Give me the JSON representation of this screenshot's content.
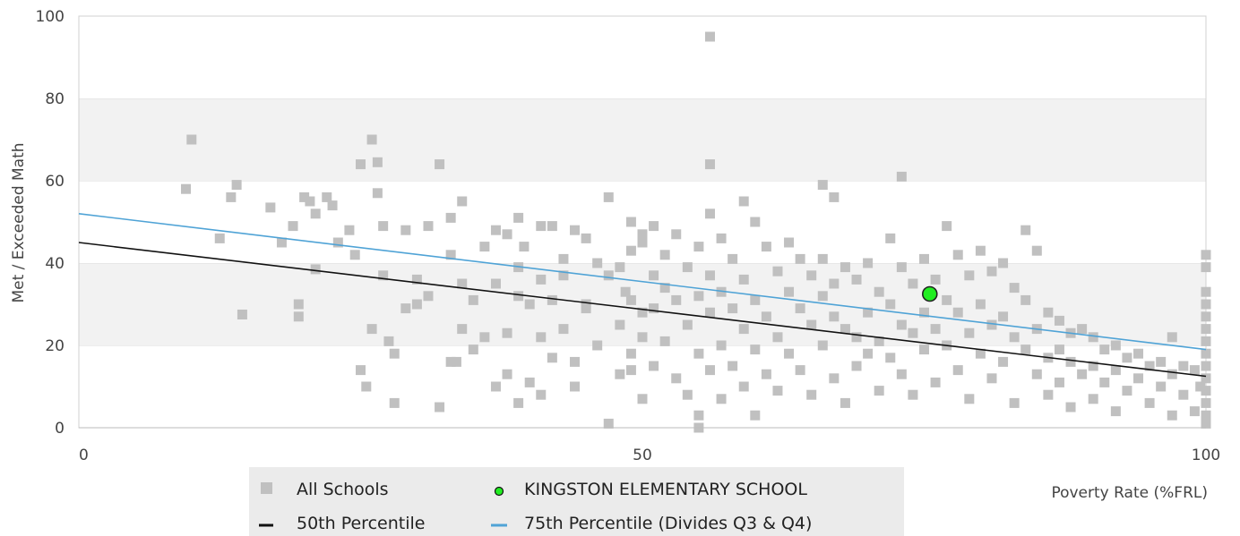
{
  "chart_data": {
    "type": "scatter",
    "title": "",
    "xlabel": "Poverty Rate (%FRL)",
    "ylabel": "Met / Exceeded Math",
    "xlim": [
      0,
      100
    ],
    "ylim": [
      0,
      100
    ],
    "x_ticks": [
      "0",
      "50",
      "100"
    ],
    "y_ticks": [
      "0",
      "20",
      "40",
      "60",
      "80",
      "100"
    ],
    "grid": "horizontal bands",
    "legend_position": "bottom",
    "series": [
      {
        "name": "All Schools",
        "kind": "points",
        "color": "#c0c0c0",
        "marker": "square",
        "points": [
          [
            9.5,
            58
          ],
          [
            10,
            70
          ],
          [
            12.5,
            46
          ],
          [
            13.5,
            56
          ],
          [
            14,
            59
          ],
          [
            14.5,
            27.5
          ],
          [
            17,
            53.5
          ],
          [
            18,
            45
          ],
          [
            19,
            49
          ],
          [
            19.5,
            30
          ],
          [
            19.5,
            27
          ],
          [
            20,
            56
          ],
          [
            20.5,
            55
          ],
          [
            21,
            52
          ],
          [
            21,
            38.5
          ],
          [
            22,
            56
          ],
          [
            22.5,
            54
          ],
          [
            23,
            45
          ],
          [
            24,
            48
          ],
          [
            24.5,
            42
          ],
          [
            25,
            64
          ],
          [
            25,
            14
          ],
          [
            25.5,
            10
          ],
          [
            26,
            70
          ],
          [
            26.5,
            64.5
          ],
          [
            26.5,
            57
          ],
          [
            26,
            24
          ],
          [
            27,
            49
          ],
          [
            27,
            37
          ],
          [
            27.5,
            21
          ],
          [
            28,
            18
          ],
          [
            28,
            6
          ],
          [
            29,
            29
          ],
          [
            29,
            48
          ],
          [
            30,
            30
          ],
          [
            30,
            36
          ],
          [
            31,
            49
          ],
          [
            31,
            32
          ],
          [
            32,
            64
          ],
          [
            32,
            5
          ],
          [
            33,
            42
          ],
          [
            33,
            51
          ],
          [
            33,
            16
          ],
          [
            33.5,
            16
          ],
          [
            34,
            55
          ],
          [
            34,
            24
          ],
          [
            34,
            35
          ],
          [
            35,
            31
          ],
          [
            35,
            19
          ],
          [
            36,
            44
          ],
          [
            36,
            22
          ],
          [
            37,
            48
          ],
          [
            37,
            35
          ],
          [
            37,
            10
          ],
          [
            38,
            47
          ],
          [
            38,
            23
          ],
          [
            38,
            13
          ],
          [
            39,
            51
          ],
          [
            39,
            39
          ],
          [
            39,
            32
          ],
          [
            39,
            6
          ],
          [
            39.5,
            44
          ],
          [
            40,
            30
          ],
          [
            40,
            11
          ],
          [
            41,
            49
          ],
          [
            41,
            36
          ],
          [
            41,
            22
          ],
          [
            41,
            8
          ],
          [
            42,
            49
          ],
          [
            42,
            31
          ],
          [
            42,
            17
          ],
          [
            43,
            41
          ],
          [
            43,
            24
          ],
          [
            43,
            37
          ],
          [
            44,
            48
          ],
          [
            44,
            16
          ],
          [
            44,
            10
          ],
          [
            45,
            46
          ],
          [
            45,
            30
          ],
          [
            45,
            29
          ],
          [
            46,
            40
          ],
          [
            46,
            20
          ],
          [
            47,
            56
          ],
          [
            47,
            37
          ],
          [
            47,
            1
          ],
          [
            48,
            39
          ],
          [
            48,
            25
          ],
          [
            48,
            13
          ],
          [
            48.5,
            33
          ],
          [
            49,
            43
          ],
          [
            49,
            50
          ],
          [
            49,
            31
          ],
          [
            49,
            18
          ],
          [
            49,
            14
          ],
          [
            50,
            47
          ],
          [
            50,
            45
          ],
          [
            50,
            28
          ],
          [
            50,
            22
          ],
          [
            50,
            7
          ],
          [
            51,
            37
          ],
          [
            51,
            49
          ],
          [
            51,
            29
          ],
          [
            51,
            15
          ],
          [
            52,
            42
          ],
          [
            52,
            34
          ],
          [
            52,
            21
          ],
          [
            53,
            47
          ],
          [
            53,
            31
          ],
          [
            53,
            12
          ],
          [
            54,
            39
          ],
          [
            54,
            25
          ],
          [
            54,
            8
          ],
          [
            55,
            44
          ],
          [
            55,
            32
          ],
          [
            55,
            18
          ],
          [
            55,
            3
          ],
          [
            55,
            0
          ],
          [
            56,
            95
          ],
          [
            56,
            64
          ],
          [
            56,
            52
          ],
          [
            56,
            37
          ],
          [
            56,
            28
          ],
          [
            56,
            14
          ],
          [
            57,
            46
          ],
          [
            57,
            33
          ],
          [
            57,
            20
          ],
          [
            57,
            7
          ],
          [
            58,
            41
          ],
          [
            58,
            29
          ],
          [
            58,
            15
          ],
          [
            59,
            55
          ],
          [
            59,
            36
          ],
          [
            59,
            24
          ],
          [
            59,
            10
          ],
          [
            60,
            50
          ],
          [
            60,
            31
          ],
          [
            60,
            19
          ],
          [
            60,
            3
          ],
          [
            61,
            44
          ],
          [
            61,
            27
          ],
          [
            61,
            13
          ],
          [
            62,
            38
          ],
          [
            62,
            22
          ],
          [
            62,
            9
          ],
          [
            63,
            45
          ],
          [
            63,
            33
          ],
          [
            63,
            18
          ],
          [
            64,
            41
          ],
          [
            64,
            29
          ],
          [
            64,
            14
          ],
          [
            65,
            37
          ],
          [
            65,
            25
          ],
          [
            65,
            8
          ],
          [
            66,
            59
          ],
          [
            66,
            41
          ],
          [
            66,
            32
          ],
          [
            66,
            20
          ],
          [
            67,
            56
          ],
          [
            67,
            35
          ],
          [
            67,
            27
          ],
          [
            67,
            12
          ],
          [
            68,
            39
          ],
          [
            68,
            24
          ],
          [
            68,
            6
          ],
          [
            69,
            36
          ],
          [
            69,
            22
          ],
          [
            69,
            15
          ],
          [
            70,
            40
          ],
          [
            70,
            28
          ],
          [
            70,
            18
          ],
          [
            71,
            33
          ],
          [
            71,
            21
          ],
          [
            71,
            9
          ],
          [
            72,
            46
          ],
          [
            72,
            30
          ],
          [
            72,
            17
          ],
          [
            73,
            61
          ],
          [
            73,
            39
          ],
          [
            73,
            25
          ],
          [
            73,
            13
          ],
          [
            74,
            35
          ],
          [
            74,
            23
          ],
          [
            74,
            8
          ],
          [
            75,
            41
          ],
          [
            75,
            28
          ],
          [
            75,
            19
          ],
          [
            76,
            36
          ],
          [
            76,
            24
          ],
          [
            76,
            11
          ],
          [
            77,
            49
          ],
          [
            77,
            31
          ],
          [
            77,
            20
          ],
          [
            78,
            42
          ],
          [
            78,
            28
          ],
          [
            78,
            14
          ],
          [
            79,
            37
          ],
          [
            79,
            23
          ],
          [
            79,
            7
          ],
          [
            80,
            43
          ],
          [
            80,
            30
          ],
          [
            80,
            18
          ],
          [
            81,
            38
          ],
          [
            81,
            25
          ],
          [
            81,
            12
          ],
          [
            82,
            40
          ],
          [
            82,
            27
          ],
          [
            82,
            16
          ],
          [
            83,
            34
          ],
          [
            83,
            22
          ],
          [
            83,
            6
          ],
          [
            84,
            48
          ],
          [
            84,
            31
          ],
          [
            84,
            19
          ],
          [
            85,
            43
          ],
          [
            85,
            24
          ],
          [
            85,
            13
          ],
          [
            86,
            28
          ],
          [
            86,
            17
          ],
          [
            86,
            8
          ],
          [
            87,
            26
          ],
          [
            87,
            19
          ],
          [
            87,
            11
          ],
          [
            88,
            23
          ],
          [
            88,
            16
          ],
          [
            88,
            5
          ],
          [
            89,
            24
          ],
          [
            89,
            13
          ],
          [
            90,
            22
          ],
          [
            90,
            15
          ],
          [
            90,
            7
          ],
          [
            91,
            19
          ],
          [
            91,
            11
          ],
          [
            92,
            20
          ],
          [
            92,
            14
          ],
          [
            92,
            4
          ],
          [
            93,
            17
          ],
          [
            93,
            9
          ],
          [
            94,
            18
          ],
          [
            94,
            12
          ],
          [
            95,
            15
          ],
          [
            95,
            6
          ],
          [
            96,
            16
          ],
          [
            96,
            10
          ],
          [
            97,
            22
          ],
          [
            97,
            13
          ],
          [
            97,
            3
          ],
          [
            98,
            15
          ],
          [
            98,
            8
          ],
          [
            99,
            14
          ],
          [
            99,
            4
          ],
          [
            99.5,
            10
          ],
          [
            100,
            42
          ],
          [
            100,
            39
          ],
          [
            100,
            33
          ],
          [
            100,
            30
          ],
          [
            100,
            27
          ],
          [
            100,
            24
          ],
          [
            100,
            21
          ],
          [
            100,
            18
          ],
          [
            100,
            15
          ],
          [
            100,
            12
          ],
          [
            100,
            9
          ],
          [
            100,
            6
          ],
          [
            100,
            3
          ],
          [
            100,
            1
          ]
        ]
      },
      {
        "name": "KINGSTON ELEMENTARY SCHOOL",
        "kind": "points",
        "color": "#22ee22",
        "marker": "circle",
        "points": [
          [
            75.5,
            32.5
          ]
        ]
      },
      {
        "name": "50th Percentile",
        "kind": "line",
        "color": "#111111",
        "points": [
          [
            0,
            45
          ],
          [
            100,
            12.5
          ]
        ]
      },
      {
        "name": "75th Percentile (Divides Q3 & Q4)",
        "kind": "line",
        "color": "#4fa3d6",
        "points": [
          [
            0,
            52
          ],
          [
            100,
            19
          ]
        ]
      }
    ]
  }
}
